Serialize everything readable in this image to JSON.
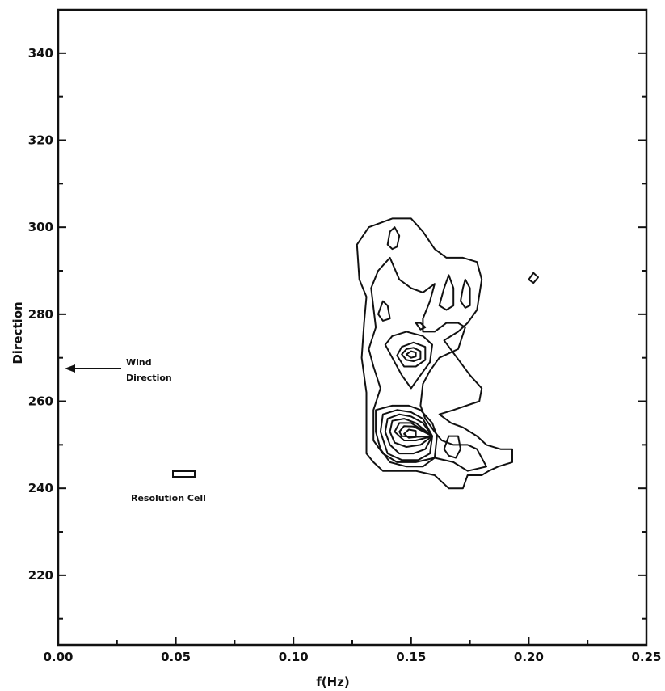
{
  "chart_data": {
    "type": "contour",
    "title": "",
    "xlabel": "f(Hz)",
    "ylabel": "Direction",
    "xlim": [
      0.0,
      0.25
    ],
    "ylim": [
      204,
      350
    ],
    "x_ticks": [
      {
        "value": 0.0,
        "label": "0.00"
      },
      {
        "value": 0.05,
        "label": "0.05"
      },
      {
        "value": 0.1,
        "label": "0.10"
      },
      {
        "value": 0.15,
        "label": "0.15"
      },
      {
        "value": 0.2,
        "label": "0.20"
      },
      {
        "value": 0.25,
        "label": "0.25"
      }
    ],
    "x_minor_ticks": [
      0.025,
      0.075,
      0.125,
      0.175,
      0.225
    ],
    "y_ticks": [
      {
        "value": 220,
        "label": "220"
      },
      {
        "value": 240,
        "label": "240"
      },
      {
        "value": 260,
        "label": "260"
      },
      {
        "value": 280,
        "label": "280"
      },
      {
        "value": 300,
        "label": "300"
      },
      {
        "value": 320,
        "label": "320"
      },
      {
        "value": 340,
        "label": "340"
      }
    ],
    "y_minor_ticks": [
      210,
      230,
      250,
      270,
      290,
      310,
      330
    ],
    "grid": false,
    "annotations": {
      "wind_direction": {
        "text_line1": "Wind",
        "text_line2": "Direction",
        "arrow_to": [
          0.0,
          267
        ]
      },
      "resolution_cell": {
        "text": "Resolution Cell",
        "box_x": [
          0.048,
          0.056
        ],
        "box_y": [
          242.2,
          243.6
        ]
      }
    },
    "contours": [
      {
        "level": 1,
        "points": [
          [
            0.131,
            284
          ],
          [
            0.128,
            288
          ],
          [
            0.127,
            296
          ],
          [
            0.132,
            300
          ],
          [
            0.142,
            302
          ],
          [
            0.15,
            302
          ],
          [
            0.155,
            299
          ],
          [
            0.16,
            295
          ],
          [
            0.165,
            293
          ],
          [
            0.172,
            293
          ],
          [
            0.178,
            292
          ],
          [
            0.18,
            288
          ],
          [
            0.178,
            281
          ],
          [
            0.174,
            278
          ],
          [
            0.17,
            276
          ],
          [
            0.164,
            274
          ],
          [
            0.175,
            266
          ],
          [
            0.18,
            263
          ],
          [
            0.179,
            260
          ],
          [
            0.168,
            258
          ],
          [
            0.162,
            257
          ],
          [
            0.167,
            255
          ],
          [
            0.172,
            254
          ],
          [
            0.178,
            252
          ],
          [
            0.182,
            250
          ],
          [
            0.188,
            249
          ],
          [
            0.193,
            249
          ],
          [
            0.193,
            246
          ],
          [
            0.187,
            245
          ],
          [
            0.183,
            244
          ],
          [
            0.18,
            243
          ],
          [
            0.174,
            243
          ],
          [
            0.172,
            240
          ],
          [
            0.166,
            240
          ],
          [
            0.16,
            243
          ],
          [
            0.152,
            244
          ],
          [
            0.145,
            244
          ],
          [
            0.138,
            244
          ],
          [
            0.134,
            246
          ],
          [
            0.131,
            248
          ],
          [
            0.131,
            256
          ],
          [
            0.131,
            262
          ],
          [
            0.129,
            270
          ],
          [
            0.13,
            278
          ],
          [
            0.131,
            284
          ]
        ]
      },
      {
        "level": 2,
        "points": [
          [
            0.135,
            277
          ],
          [
            0.133,
            286
          ],
          [
            0.136,
            290
          ],
          [
            0.141,
            293
          ],
          [
            0.145,
            288
          ],
          [
            0.15,
            286
          ],
          [
            0.155,
            285
          ],
          [
            0.16,
            287
          ],
          [
            0.158,
            283
          ],
          [
            0.155,
            279
          ],
          [
            0.155,
            276
          ],
          [
            0.16,
            276
          ],
          [
            0.165,
            278
          ],
          [
            0.17,
            278
          ],
          [
            0.173,
            277
          ],
          [
            0.17,
            272
          ],
          [
            0.162,
            270
          ],
          [
            0.158,
            267
          ],
          [
            0.155,
            264
          ],
          [
            0.154,
            259
          ],
          [
            0.156,
            256
          ],
          [
            0.16,
            253
          ],
          [
            0.163,
            251
          ],
          [
            0.168,
            250
          ],
          [
            0.174,
            250
          ],
          [
            0.178,
            249
          ],
          [
            0.182,
            245
          ],
          [
            0.174,
            244
          ],
          [
            0.168,
            246
          ],
          [
            0.16,
            247
          ],
          [
            0.152,
            246
          ],
          [
            0.144,
            246
          ],
          [
            0.138,
            248
          ],
          [
            0.134,
            251
          ],
          [
            0.134,
            258
          ],
          [
            0.137,
            263
          ],
          [
            0.134,
            268
          ],
          [
            0.132,
            272
          ],
          [
            0.135,
            277
          ]
        ]
      },
      {
        "level": 3,
        "points": [
          [
            0.142,
            270
          ],
          [
            0.139,
            273
          ],
          [
            0.142,
            275
          ],
          [
            0.148,
            276
          ],
          [
            0.155,
            275
          ],
          [
            0.159,
            273
          ],
          [
            0.158,
            269
          ],
          [
            0.154,
            266
          ],
          [
            0.15,
            263
          ],
          [
            0.146,
            266
          ],
          [
            0.142,
            270
          ]
        ]
      },
      {
        "level": 4,
        "points": [
          [
            0.144,
            270.5
          ],
          [
            0.146,
            272.5
          ],
          [
            0.151,
            273.5
          ],
          [
            0.156,
            272.5
          ],
          [
            0.156,
            269.5
          ],
          [
            0.152,
            268
          ],
          [
            0.147,
            268
          ],
          [
            0.144,
            270.5
          ]
        ]
      },
      {
        "level": 5,
        "points": [
          [
            0.146,
            270.8
          ],
          [
            0.148,
            272
          ],
          [
            0.151,
            272.3
          ],
          [
            0.154,
            271.5
          ],
          [
            0.154,
            269.8
          ],
          [
            0.151,
            269.2
          ],
          [
            0.148,
            269.5
          ],
          [
            0.146,
            270.8
          ]
        ]
      },
      {
        "level": 6,
        "points": [
          [
            0.148,
            270.8
          ],
          [
            0.15,
            271.5
          ],
          [
            0.152,
            271.2
          ],
          [
            0.152,
            270.3
          ],
          [
            0.15,
            270
          ],
          [
            0.148,
            270.8
          ]
        ]
      },
      {
        "level": 3,
        "points": [
          [
            0.135,
            253
          ],
          [
            0.135,
            258
          ],
          [
            0.142,
            259
          ],
          [
            0.149,
            259
          ],
          [
            0.154,
            258
          ],
          [
            0.159,
            255
          ],
          [
            0.161,
            252
          ],
          [
            0.16,
            247
          ],
          [
            0.155,
            245
          ],
          [
            0.148,
            245
          ],
          [
            0.141,
            246
          ],
          [
            0.137,
            249
          ],
          [
            0.135,
            253
          ]
        ]
      },
      {
        "level": 4,
        "points": [
          [
            0.137,
            253
          ],
          [
            0.138,
            257
          ],
          [
            0.144,
            258
          ],
          [
            0.15,
            257.5
          ],
          [
            0.155,
            256
          ],
          [
            0.159,
            252
          ],
          [
            0.158,
            248
          ],
          [
            0.153,
            246.5
          ],
          [
            0.146,
            246.5
          ],
          [
            0.14,
            248
          ],
          [
            0.137,
            253
          ]
        ]
      },
      {
        "level": 5,
        "points": [
          [
            0.139,
            253
          ],
          [
            0.14,
            256
          ],
          [
            0.145,
            257
          ],
          [
            0.15,
            256.5
          ],
          [
            0.155,
            255
          ],
          [
            0.159,
            252
          ],
          [
            0.156,
            249
          ],
          [
            0.151,
            248
          ],
          [
            0.145,
            248
          ],
          [
            0.141,
            250
          ],
          [
            0.139,
            253
          ]
        ]
      },
      {
        "level": 6,
        "points": [
          [
            0.141,
            253
          ],
          [
            0.142,
            255.5
          ],
          [
            0.147,
            256
          ],
          [
            0.152,
            255
          ],
          [
            0.159,
            252
          ],
          [
            0.154,
            250
          ],
          [
            0.148,
            249.5
          ],
          [
            0.143,
            250.5
          ],
          [
            0.141,
            253
          ]
        ]
      },
      {
        "level": 7,
        "points": [
          [
            0.143,
            253
          ],
          [
            0.145,
            255
          ],
          [
            0.15,
            255
          ],
          [
            0.159,
            252
          ],
          [
            0.152,
            251
          ],
          [
            0.147,
            251
          ],
          [
            0.143,
            253
          ]
        ]
      },
      {
        "level": 8,
        "points": [
          [
            0.145,
            253
          ],
          [
            0.147,
            254.3
          ],
          [
            0.151,
            254.2
          ],
          [
            0.159,
            252
          ],
          [
            0.151,
            251.8
          ],
          [
            0.146,
            252
          ],
          [
            0.145,
            253
          ]
        ]
      },
      {
        "level": 9,
        "points": [
          [
            0.147,
            252.5
          ],
          [
            0.149,
            253.5
          ],
          [
            0.152,
            253.2
          ],
          [
            0.152,
            251.8
          ],
          [
            0.149,
            251.6
          ],
          [
            0.147,
            252.5
          ]
        ]
      },
      {
        "level": 2,
        "points": [
          [
            0.14,
            296
          ],
          [
            0.141,
            299
          ],
          [
            0.143,
            300
          ],
          [
            0.145,
            298
          ],
          [
            0.144,
            295.5
          ],
          [
            0.142,
            295
          ],
          [
            0.14,
            296
          ]
        ]
      },
      {
        "level": 2,
        "points": [
          [
            0.136,
            280
          ],
          [
            0.138,
            283
          ],
          [
            0.14,
            282
          ],
          [
            0.141,
            279
          ],
          [
            0.138,
            278.5
          ],
          [
            0.136,
            280
          ]
        ]
      },
      {
        "level": 2,
        "points": [
          [
            0.162,
            282
          ],
          [
            0.164,
            286
          ],
          [
            0.166,
            289
          ],
          [
            0.168,
            286
          ],
          [
            0.168,
            282
          ],
          [
            0.165,
            281
          ],
          [
            0.162,
            282
          ]
        ]
      },
      {
        "level": 2,
        "points": [
          [
            0.171,
            283
          ],
          [
            0.172,
            286
          ],
          [
            0.173,
            288
          ],
          [
            0.175,
            286
          ],
          [
            0.175,
            282
          ],
          [
            0.173,
            281.5
          ],
          [
            0.171,
            283
          ]
        ]
      },
      {
        "level": 2,
        "points": [
          [
            0.164,
            249
          ],
          [
            0.166,
            252
          ],
          [
            0.17,
            252
          ],
          [
            0.171,
            249
          ],
          [
            0.169,
            247
          ],
          [
            0.166,
            247.5
          ],
          [
            0.164,
            249
          ]
        ]
      },
      {
        "level": 1,
        "points": [
          [
            0.2,
            288
          ],
          [
            0.202,
            289.5
          ],
          [
            0.204,
            288.5
          ],
          [
            0.202,
            287.2
          ],
          [
            0.2,
            288
          ]
        ]
      },
      {
        "level": 1,
        "points": [
          [
            0.152,
            278
          ],
          [
            0.154,
            276.5
          ],
          [
            0.156,
            277
          ],
          [
            0.154,
            278
          ],
          [
            0.152,
            278
          ]
        ]
      }
    ]
  }
}
